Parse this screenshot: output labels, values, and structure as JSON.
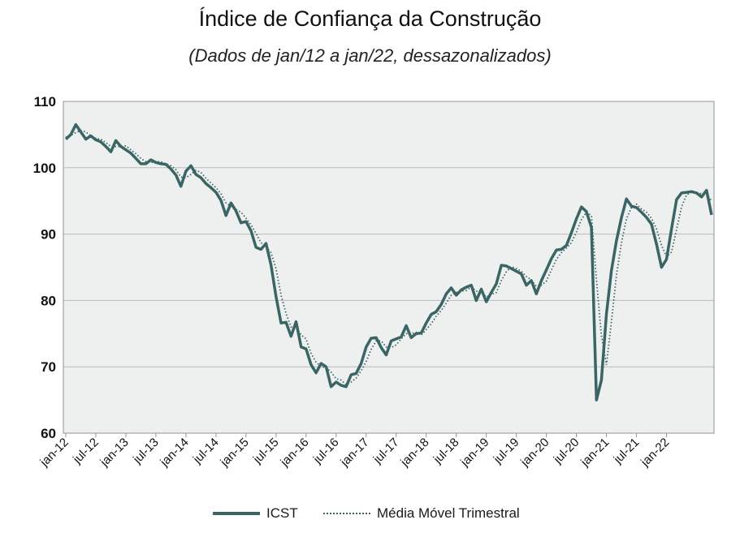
{
  "title": "Índice de Confiança da Construção",
  "subtitle": "(Dados de jan/12 a jan/22, dessazonalizados)",
  "colors": {
    "icst": "#3a6564",
    "mm": "#3a6564",
    "plot_bg": "#eef0f0",
    "grid": "#b9bcbc"
  },
  "chart_data": {
    "type": "line",
    "title": "Índice de Confiança da Construção",
    "subtitle": "(Dados de jan/12 a jan/22, dessazonalizados)",
    "xlabel": "",
    "ylabel": "",
    "ylim": [
      60,
      110
    ],
    "yticks": [
      60,
      70,
      80,
      90,
      100,
      110
    ],
    "grid": true,
    "legend_position": "bottom",
    "xtick_labels": [
      "jan-12",
      "jul-12",
      "jan-13",
      "jul-13",
      "jan-14",
      "jul-14",
      "jan-15",
      "jul-15",
      "jan-16",
      "jul-16",
      "jan-17",
      "jul-17",
      "jan-18",
      "jul-18",
      "jan-19",
      "jul-19",
      "jan-20",
      "jul-20",
      "jan-21",
      "jul-21",
      "jan-22"
    ],
    "series": [
      {
        "name": "ICST",
        "style": "solid",
        "values": [
          104.3,
          105.0,
          106.5,
          105.4,
          104.3,
          104.8,
          104.2,
          103.9,
          103.2,
          102.4,
          104.1,
          103.2,
          102.7,
          102.2,
          101.4,
          100.6,
          100.6,
          101.2,
          100.8,
          100.6,
          100.5,
          99.8,
          98.9,
          97.2,
          99.5,
          100.3,
          99.0,
          98.5,
          97.6,
          97.0,
          96.3,
          95.1,
          92.8,
          94.7,
          93.5,
          91.7,
          91.9,
          90.5,
          88.0,
          87.7,
          88.6,
          85.3,
          80.6,
          76.6,
          76.7,
          74.6,
          76.8,
          73.0,
          72.7,
          70.3,
          69.1,
          70.5,
          70.0,
          67.0,
          67.7,
          67.2,
          67.0,
          68.8,
          69.0,
          70.5,
          73.0,
          74.3,
          74.4,
          72.9,
          71.8,
          73.9,
          74.2,
          74.5,
          76.2,
          74.4,
          75.0,
          75.1,
          76.6,
          77.9,
          78.3,
          79.4,
          81.0,
          81.9,
          80.8,
          81.6,
          82.0,
          82.3,
          80.0,
          81.7,
          79.8,
          81.2,
          82.5,
          85.3,
          85.2,
          84.8,
          84.4,
          84.0,
          82.3,
          83.0,
          81.0,
          83.0,
          84.6,
          86.3,
          87.6,
          87.7,
          88.3,
          90.2,
          92.3,
          94.1,
          93.4,
          91.0,
          65.0,
          68.0,
          78.0,
          84.5,
          89.0,
          92.5,
          95.3,
          94.2,
          94.0,
          93.3,
          92.5,
          91.5,
          88.5,
          85.0,
          86.2,
          90.8,
          95.2,
          96.2,
          96.3,
          96.4,
          96.2,
          95.6,
          96.6,
          92.9
        ]
      },
      {
        "name": "Média Móvel Trimestral",
        "style": "dotted",
        "values": [
          104.6,
          104.9,
          105.3,
          105.6,
          105.4,
          104.8,
          104.4,
          104.3,
          103.8,
          103.2,
          103.2,
          103.2,
          103.3,
          102.7,
          102.1,
          101.4,
          100.9,
          100.8,
          100.9,
          100.9,
          100.6,
          100.3,
          99.7,
          98.6,
          98.5,
          99.0,
          99.6,
          99.3,
          98.4,
          97.7,
          97.0,
          96.1,
          94.7,
          94.2,
          93.7,
          93.3,
          92.4,
          91.4,
          90.1,
          88.7,
          88.1,
          87.2,
          84.8,
          80.8,
          78.0,
          76.0,
          76.0,
          74.8,
          74.2,
          72.0,
          70.7,
          70.0,
          69.9,
          69.2,
          68.2,
          68.0,
          67.3,
          67.7,
          68.3,
          69.4,
          70.8,
          72.6,
          73.9,
          73.9,
          73.0,
          72.9,
          73.3,
          74.2,
          75.0,
          75.0,
          75.2,
          74.8,
          75.6,
          76.5,
          77.6,
          78.5,
          79.6,
          80.8,
          81.2,
          81.4,
          81.5,
          82.0,
          81.4,
          81.3,
          80.5,
          80.9,
          81.2,
          83.0,
          84.3,
          85.1,
          84.8,
          84.4,
          83.6,
          83.1,
          82.1,
          82.3,
          82.9,
          84.6,
          86.2,
          87.2,
          87.9,
          88.7,
          90.3,
          92.2,
          93.3,
          92.8,
          83.1,
          74.7,
          70.3,
          76.8,
          83.8,
          88.7,
          92.3,
          94.0,
          94.5,
          93.8,
          93.3,
          92.4,
          90.8,
          88.3,
          86.6,
          87.3,
          90.7,
          94.1,
          95.9,
          96.3,
          96.3,
          96.1,
          96.1,
          95.0
        ]
      }
    ]
  },
  "legend": {
    "icst": "ICST",
    "mm": "Média Móvel Trimestral"
  }
}
